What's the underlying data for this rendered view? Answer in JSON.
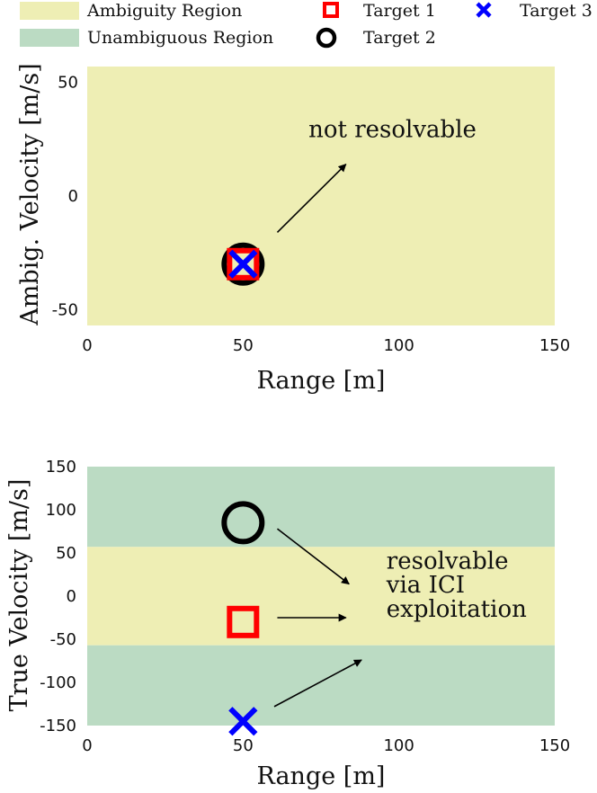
{
  "legend": {
    "items": [
      {
        "label": "Ambiguity Region",
        "kind": "patch",
        "color": "#eeeeb4"
      },
      {
        "label": "Unambiguous Region",
        "kind": "patch",
        "color": "#bbdbc3"
      },
      {
        "label": "Target 1",
        "kind": "square",
        "color": "#ff0000"
      },
      {
        "label": "Target 2",
        "kind": "circle",
        "color": "#000000"
      },
      {
        "label": "Target 3",
        "kind": "cross",
        "color": "#0000ff"
      }
    ]
  },
  "chart_data": [
    {
      "type": "scatter",
      "xlabel": "Range [m]",
      "ylabel": "Ambig. Velocity [m/s]",
      "xlim": [
        0,
        150
      ],
      "ylim": [
        -57,
        57
      ],
      "xticks": [
        "0",
        "50",
        "100",
        "150"
      ],
      "yticks": [
        "-50",
        "0",
        "50"
      ],
      "regions": [
        {
          "name": "Ambiguity Region",
          "y_from": -57,
          "y_to": 57,
          "color": "#eeeeb4"
        }
      ],
      "series": [
        {
          "name": "Target 1",
          "marker": "square",
          "color": "#ff0000",
          "x": [
            50
          ],
          "y": [
            -30
          ]
        },
        {
          "name": "Target 2",
          "marker": "circle",
          "color": "#000000",
          "x": [
            50
          ],
          "y": [
            -30
          ]
        },
        {
          "name": "Target 3",
          "marker": "cross",
          "color": "#0000ff",
          "x": [
            50
          ],
          "y": [
            -30
          ]
        }
      ],
      "annotations": [
        {
          "text": "not resolvable",
          "x": 71,
          "y": 26
        }
      ],
      "arrows": [
        {
          "from": [
            61,
            -16
          ],
          "to": [
            83,
            14
          ]
        }
      ]
    },
    {
      "type": "scatter",
      "xlabel": "Range [m]",
      "ylabel": "True Velocity [m/s]",
      "xlim": [
        0,
        150
      ],
      "ylim": [
        -150,
        150
      ],
      "xticks": [
        "0",
        "50",
        "100",
        "150"
      ],
      "yticks": [
        "-150",
        "-100",
        "-50",
        "0",
        "50",
        "100",
        "150"
      ],
      "regions": [
        {
          "name": "Unambiguous Region",
          "y_from": 57,
          "y_to": 150,
          "color": "#bbdbc3"
        },
        {
          "name": "Ambiguity Region",
          "y_from": -57,
          "y_to": 57,
          "color": "#eeeeb4"
        },
        {
          "name": "Unambiguous Region",
          "y_from": -150,
          "y_to": -57,
          "color": "#bbdbc3"
        }
      ],
      "series": [
        {
          "name": "Target 1",
          "marker": "square",
          "color": "#ff0000",
          "x": [
            50
          ],
          "y": [
            -30
          ]
        },
        {
          "name": "Target 2",
          "marker": "circle",
          "color": "#000000",
          "x": [
            50
          ],
          "y": [
            85
          ]
        },
        {
          "name": "Target 3",
          "marker": "cross",
          "color": "#0000ff",
          "x": [
            50
          ],
          "y": [
            -145
          ]
        }
      ],
      "annotations": [
        {
          "text": "resolvable",
          "x": 96,
          "y": 32
        },
        {
          "text": "via ICI",
          "x": 96,
          "y": 4
        },
        {
          "text": "exploitation",
          "x": 96,
          "y": -24
        }
      ],
      "arrows": [
        {
          "from": [
            61,
            78
          ],
          "to": [
            84,
            14
          ]
        },
        {
          "from": [
            61,
            -25
          ],
          "to": [
            83,
            -25
          ]
        },
        {
          "from": [
            60,
            -128
          ],
          "to": [
            88,
            -74
          ]
        }
      ]
    }
  ]
}
